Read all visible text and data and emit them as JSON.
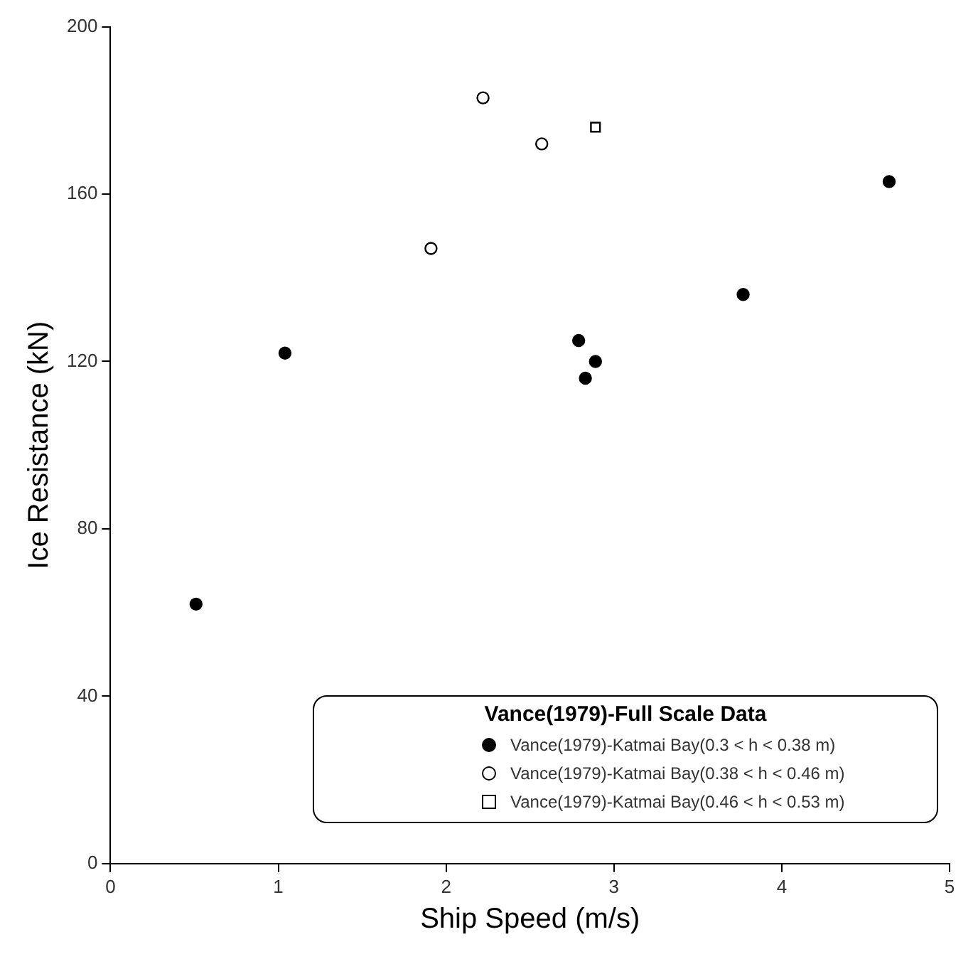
{
  "chart_data": {
    "type": "scatter",
    "xlabel": "Ship Speed (m/s)",
    "ylabel": "Ice Resistance (kN)",
    "legend_title": "Vance(1979)-Full Scale Data",
    "legend": "bottom right",
    "grid": false,
    "xlim": [
      0,
      5
    ],
    "xticks": [
      0,
      1,
      2,
      3,
      4,
      5
    ],
    "ylim": [
      0,
      200
    ],
    "yticks": [
      0,
      40,
      80,
      120,
      160,
      200
    ],
    "series": [
      {
        "name": "Vance(1979)-Katmai Bay(0.3 < h < 0.38 m)",
        "color": "#000000",
        "marker": "circle",
        "x": [
          0.51,
          1.04,
          2.79,
          2.83,
          2.89,
          3.77,
          4.64
        ],
        "values": [
          62,
          122,
          125,
          116,
          120,
          136,
          163
        ]
      },
      {
        "name": "Vance(1979)-Katmai Bay(0.38 < h < 0.46 m)",
        "color": "#ffffff",
        "marker": "circle",
        "x": [
          1.91,
          2.22,
          2.57
        ],
        "values": [
          147,
          183,
          172
        ]
      },
      {
        "name": "Vance(1979)-Katmai Bay(0.46 < h < 0.53 m)",
        "color": "#ffffff",
        "marker": "square",
        "x": [
          2.89
        ],
        "values": [
          176
        ]
      }
    ]
  }
}
